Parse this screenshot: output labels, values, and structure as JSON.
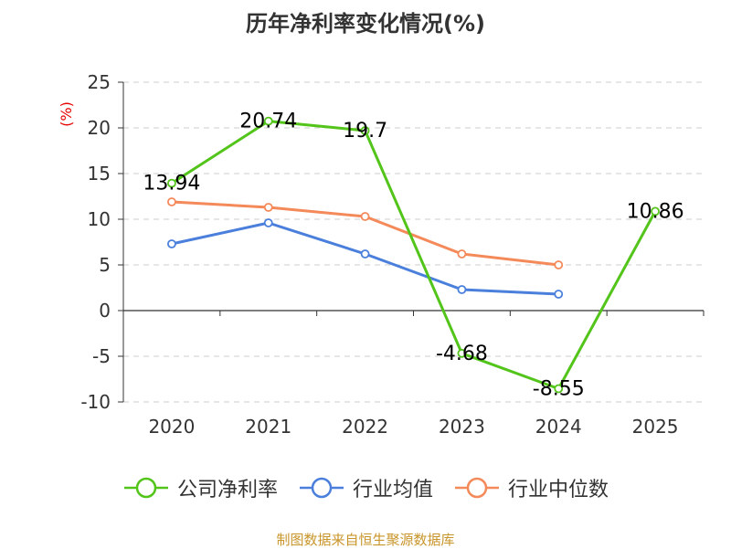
{
  "chart_data": {
    "type": "line",
    "title": "历年净利率变化情况(%)",
    "ylabel": "(%)",
    "categories": [
      "2020",
      "2021",
      "2022",
      "2023",
      "2024",
      "2025"
    ],
    "ylim": [
      -10,
      25
    ],
    "yticks": [
      "25",
      "20",
      "15",
      "10",
      "5",
      "0",
      "-5",
      "-10"
    ],
    "grid": true,
    "legend_position": "bottom",
    "series": [
      {
        "name": "公司净利率",
        "color": "#52c41a",
        "values": [
          13.94,
          20.74,
          19.7,
          -4.68,
          -8.55,
          10.86
        ],
        "labels": [
          "13.94",
          "20.74",
          "19.7",
          "-4.68",
          "-8.55",
          "10.86"
        ]
      },
      {
        "name": "行业均值",
        "color": "#4a7fdc",
        "values": [
          7.3,
          9.6,
          6.2,
          2.3,
          1.8,
          null
        ]
      },
      {
        "name": "行业中位数",
        "color": "#f4895a",
        "values": [
          11.9,
          11.3,
          10.3,
          6.2,
          5.0,
          null
        ]
      }
    ]
  },
  "source_text": "制图数据来自恒生聚源数据库",
  "colors": {
    "axis": "#333333",
    "grid": "#cccccc",
    "ylabel": "#e60000",
    "source": "#c8952a"
  }
}
